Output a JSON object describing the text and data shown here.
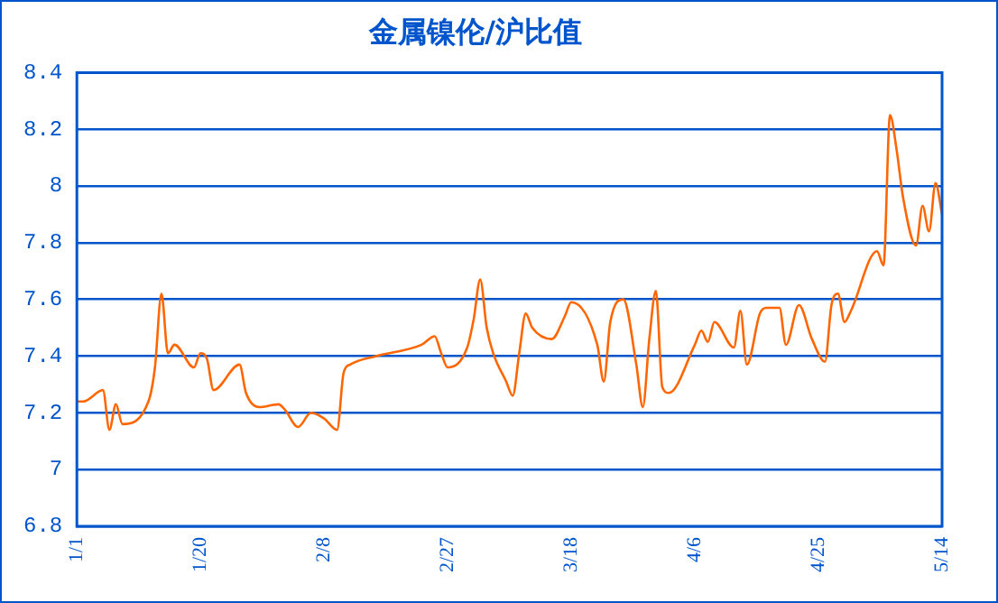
{
  "chart_data": {
    "type": "line",
    "title": "金属镍伦/沪比值",
    "x": [
      "--01-01",
      "--01-02",
      "--01-05",
      "--01-06",
      "--01-07",
      "--01-08",
      "--01-12",
      "--01-13",
      "--01-14",
      "--01-15",
      "--01-16",
      "--01-19",
      "--01-20",
      "--01-21",
      "--01-22",
      "--01-26",
      "--01-27",
      "--01-29",
      "--02-01",
      "--02-02",
      "--02-04",
      "--02-06",
      "--02-08",
      "--02-10",
      "--02-11",
      "--02-12",
      "--02-16",
      "--02-23",
      "--02-25",
      "--02-26",
      "--02-27",
      "--03-02",
      "--03-03",
      "--03-04",
      "--03-05",
      "--03-06",
      "--03-08",
      "--03-09",
      "--03-10",
      "--03-11",
      "--03-12",
      "--03-15",
      "--03-17",
      "--03-18",
      "--03-22",
      "--03-23",
      "--03-24",
      "--03-26",
      "--03-28",
      "--03-29",
      "--03-30",
      "--03-31",
      "--04-01",
      "--04-02",
      "--04-06",
      "--04-07",
      "--04-08",
      "--04-09",
      "--04-12",
      "--04-13",
      "--04-14",
      "--04-16",
      "--04-17",
      "--04-19",
      "--04-20",
      "--04-22",
      "--04-24",
      "--04-26",
      "--04-27",
      "--04-28",
      "--04-29",
      "--04-30",
      "--05-04",
      "--05-05",
      "--05-06",
      "--05-07",
      "--05-08",
      "--05-10",
      "--05-11",
      "--05-12",
      "--05-13",
      "--05-14"
    ],
    "series": [
      {
        "color": "#ff6600",
        "values": [
          7.24,
          7.24,
          7.28,
          7.14,
          7.23,
          7.16,
          7.24,
          7.36,
          7.62,
          7.41,
          7.44,
          7.36,
          7.41,
          7.39,
          7.28,
          7.37,
          7.27,
          7.22,
          7.23,
          7.21,
          7.15,
          7.2,
          7.18,
          7.14,
          7.34,
          7.37,
          7.4,
          7.44,
          7.47,
          7.41,
          7.36,
          7.43,
          7.53,
          7.67,
          7.5,
          7.41,
          7.31,
          7.26,
          7.41,
          7.55,
          7.5,
          7.46,
          7.54,
          7.59,
          7.44,
          7.31,
          7.52,
          7.6,
          7.37,
          7.22,
          7.46,
          7.63,
          7.29,
          7.27,
          7.44,
          7.49,
          7.45,
          7.52,
          7.43,
          7.56,
          7.37,
          7.55,
          7.57,
          7.57,
          7.44,
          7.58,
          7.46,
          7.38,
          7.58,
          7.62,
          7.52,
          7.56,
          7.77,
          7.72,
          8.25,
          8.13,
          7.96,
          7.79,
          7.93,
          7.84,
          8.01,
          7.9
        ]
      }
    ],
    "xlim": [
      "--01-01",
      "--05-14"
    ],
    "xticks": [
      {
        "value": "--01-01",
        "label": "1/1"
      },
      {
        "value": "--01-20",
        "label": "1/20"
      },
      {
        "value": "--02-08",
        "label": "2/8"
      },
      {
        "value": "--02-27",
        "label": "2/27"
      },
      {
        "value": "--03-18",
        "label": "3/18"
      },
      {
        "value": "--04-06",
        "label": "4/6"
      },
      {
        "value": "--04-25",
        "label": "4/25"
      },
      {
        "value": "--05-14",
        "label": "5/14"
      }
    ],
    "ylim": [
      6.8,
      8.4
    ],
    "yticks": [
      6.8,
      7,
      7.2,
      7.4,
      7.6,
      7.8,
      8,
      8.2,
      8.4
    ],
    "grid": "y",
    "legend": false
  }
}
